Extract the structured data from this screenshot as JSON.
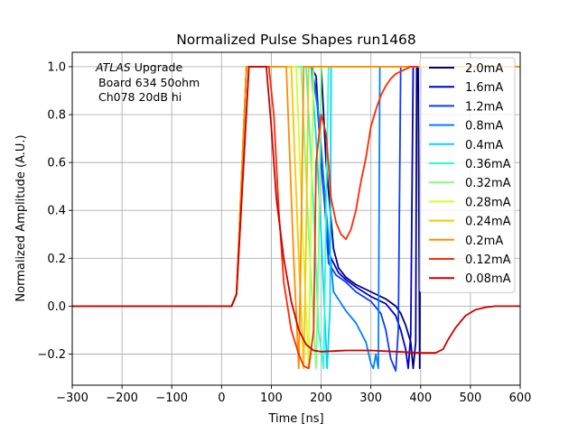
{
  "chart_data": {
    "type": "line",
    "title": "Normalized Pulse Shapes run1468",
    "xlabel": "Time [ns]",
    "ylabel": "Normalized Amplitude (A.U.)",
    "xlim": [
      -300,
      600
    ],
    "ylim": [
      -0.33,
      1.06
    ],
    "xticks": [
      -300,
      -200,
      -100,
      0,
      100,
      200,
      300,
      400,
      500,
      600
    ],
    "xtick_labels": [
      "−300",
      "−200",
      "−100",
      "0",
      "100",
      "200",
      "300",
      "400",
      "500",
      "600"
    ],
    "yticks": [
      -0.2,
      0.0,
      0.2,
      0.4,
      0.6,
      0.8,
      1.0
    ],
    "ytick_labels": [
      "−0.2",
      "0.0",
      "0.2",
      "0.4",
      "0.6",
      "0.8",
      "1.0"
    ],
    "grid": true,
    "legend_position": "top-right",
    "annotation": {
      "line1_italic": "ATLAS",
      "line1_rest": " Upgrade",
      "line2": "Board 634 50ohm",
      "line3": "Ch078 20dB hi"
    },
    "series": [
      {
        "name": "2.0mA",
        "color": "#00007f",
        "x": [
          -300,
          20,
          30,
          50,
          60,
          190,
          200,
          210,
          225,
          235,
          250,
          270,
          300,
          330,
          350,
          360,
          370,
          380,
          385,
          390,
          392,
          395,
          398,
          400
        ],
        "y": [
          0,
          0,
          0.05,
          1.0,
          1.0,
          1.0,
          1.0,
          0.6,
          0.24,
          0.16,
          0.12,
          0.09,
          0.06,
          0.03,
          0.0,
          -0.03,
          -0.08,
          -0.15,
          -0.26,
          -0.15,
          1.0,
          1.0,
          -0.26,
          1.0
        ]
      },
      {
        "name": "1.6mA",
        "color": "#0000cd",
        "x": [
          -300,
          20,
          30,
          50,
          60,
          180,
          190,
          200,
          215,
          220,
          235,
          250,
          270,
          300,
          330,
          350,
          360,
          370,
          375,
          380,
          385,
          390
        ],
        "y": [
          0,
          0,
          0.05,
          1.0,
          1.0,
          1.0,
          0.96,
          0.6,
          0.23,
          0.2,
          0.14,
          0.11,
          0.08,
          0.04,
          0.01,
          -0.04,
          -0.1,
          -0.18,
          -0.26,
          -0.12,
          1.0,
          1.0
        ]
      },
      {
        "name": "1.2mA",
        "color": "#0d3bff",
        "x": [
          -300,
          20,
          30,
          50,
          60,
          180,
          190,
          205,
          215,
          230,
          250,
          270,
          300,
          320,
          330,
          340,
          350,
          355,
          360,
          362
        ],
        "y": [
          0,
          0,
          0.05,
          1.0,
          1.0,
          1.0,
          0.9,
          0.5,
          0.18,
          0.13,
          0.1,
          0.06,
          0.02,
          -0.03,
          -0.1,
          -0.22,
          -0.27,
          -0.1,
          1.0,
          1.0
        ]
      },
      {
        "name": "0.8mA",
        "color": "#0080ff",
        "x": [
          -300,
          20,
          30,
          50,
          60,
          180,
          195,
          210,
          225,
          250,
          270,
          290,
          300,
          305,
          310,
          315,
          318,
          320
        ],
        "y": [
          0,
          0,
          0.05,
          1.0,
          1.0,
          1.0,
          0.8,
          0.4,
          0.06,
          -0.02,
          -0.07,
          -0.15,
          -0.24,
          -0.26,
          -0.2,
          -0.26,
          1.0,
          1.0
        ]
      },
      {
        "name": "0.4mA",
        "color": "#00d4ff",
        "x": [
          -300,
          20,
          30,
          50,
          60,
          180,
          190,
          200,
          212,
          218,
          220,
          222,
          225
        ],
        "y": [
          0,
          0,
          0.05,
          1.0,
          1.0,
          1.0,
          0.7,
          0.3,
          -0.26,
          0.0,
          1.0,
          1.0,
          1.0
        ]
      },
      {
        "name": "0.36mA",
        "color": "#29ffce",
        "x": [
          -300,
          20,
          30,
          50,
          60,
          170,
          185,
          195,
          205,
          210,
          215,
          600
        ],
        "y": [
          0,
          0,
          0.05,
          1.0,
          1.0,
          1.0,
          0.4,
          -0.1,
          -0.26,
          0.4,
          1.0,
          1.0
        ]
      },
      {
        "name": "0.32mA",
        "color": "#7dff7a",
        "x": [
          -300,
          20,
          30,
          50,
          60,
          160,
          175,
          190,
          195,
          200,
          600
        ],
        "y": [
          0,
          0,
          0.05,
          1.0,
          1.0,
          1.0,
          0.3,
          -0.26,
          0.2,
          1.0,
          1.0
        ]
      },
      {
        "name": "0.28mA",
        "color": "#ceff29",
        "x": [
          -300,
          20,
          30,
          50,
          60,
          150,
          165,
          175,
          180,
          185,
          600
        ],
        "y": [
          0,
          0,
          0.05,
          1.0,
          1.0,
          1.0,
          0.2,
          -0.26,
          0.4,
          1.0,
          1.0
        ]
      },
      {
        "name": "0.24mA",
        "color": "#ffc400",
        "x": [
          -300,
          20,
          30,
          50,
          60,
          140,
          155,
          165,
          170,
          175,
          600
        ],
        "y": [
          0,
          0,
          0.05,
          1.0,
          1.0,
          1.0,
          0.2,
          -0.26,
          0.3,
          1.0,
          1.0
        ]
      },
      {
        "name": "0.2mA",
        "color": "#ff8d00",
        "x": [
          -300,
          20,
          30,
          50,
          60,
          130,
          145,
          155,
          160,
          165,
          600
        ],
        "y": [
          0,
          0,
          0.05,
          1.0,
          1.0,
          1.0,
          0.2,
          -0.26,
          0.3,
          1.0,
          1.0
        ]
      },
      {
        "name": "0.12mA",
        "color": "#ff2a00",
        "x": [
          -300,
          20,
          30,
          55,
          95,
          105,
          115,
          125,
          140,
          155,
          165,
          175,
          185,
          190,
          200,
          210,
          220,
          230,
          240,
          250,
          260,
          270,
          280,
          290,
          300,
          310,
          320,
          330,
          340,
          350,
          360,
          370,
          380,
          390,
          395
        ],
        "y": [
          0,
          0,
          0.05,
          1.0,
          1.0,
          0.8,
          0.4,
          0.1,
          -0.1,
          -0.2,
          -0.25,
          -0.26,
          -0.1,
          0.6,
          0.8,
          0.72,
          0.45,
          0.35,
          0.3,
          0.28,
          0.32,
          0.4,
          0.52,
          0.62,
          0.75,
          0.82,
          0.88,
          0.92,
          0.95,
          0.97,
          0.98,
          0.99,
          1.0,
          1.0,
          1.0
        ]
      },
      {
        "name": "0.08mA",
        "color": "#cd0000",
        "x": [
          -300,
          20,
          30,
          55,
          90,
          100,
          110,
          125,
          140,
          155,
          170,
          185,
          200,
          250,
          300,
          350,
          400,
          430,
          445,
          455,
          470,
          490,
          510,
          530,
          550,
          570,
          600
        ],
        "y": [
          0,
          0,
          0.05,
          1.0,
          1.0,
          0.75,
          0.45,
          0.2,
          0.02,
          -0.1,
          -0.16,
          -0.185,
          -0.19,
          -0.185,
          -0.185,
          -0.19,
          -0.195,
          -0.195,
          -0.18,
          -0.14,
          -0.09,
          -0.04,
          -0.015,
          -0.005,
          0.0,
          0.0,
          0.0
        ]
      }
    ]
  }
}
